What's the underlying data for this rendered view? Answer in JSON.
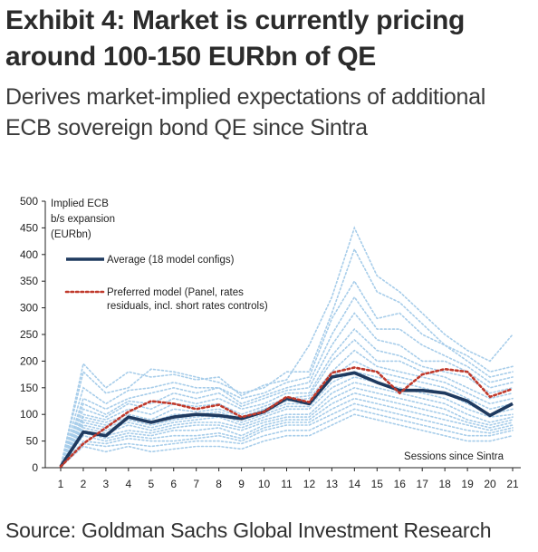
{
  "header": {
    "title_line1": "Exhibit 4: Market is currently pricing",
    "title_line2": "around 100-150 EURbn of QE",
    "subtitle_line1": "Derives market-implied expectations of additional",
    "subtitle_line2": "ECB sovereign bond QE since Sintra"
  },
  "footer": {
    "source": "Source: Goldman Sachs Global Investment Research"
  },
  "chart_data": {
    "type": "line",
    "ylabel_lines": [
      "Implied ECB",
      "b/s expansion",
      "(EURbn)"
    ],
    "xlabel": "Sessions since Sintra",
    "x": [
      1,
      2,
      3,
      4,
      5,
      6,
      7,
      8,
      9,
      10,
      11,
      12,
      13,
      14,
      15,
      16,
      17,
      18,
      19,
      20,
      21
    ],
    "ylim": [
      0,
      500
    ],
    "yticks": [
      0,
      50,
      100,
      150,
      200,
      250,
      300,
      350,
      400,
      450,
      500
    ],
    "grid": false,
    "legend_position": "top-left",
    "colors": {
      "average": "#1f3a5f",
      "preferred": "#c0392b",
      "configs": "#a7cdea"
    },
    "series": [
      {
        "name": "Average (18 model configs)",
        "style": "solid",
        "values": [
          2,
          67,
          60,
          95,
          85,
          95,
          100,
          98,
          92,
          105,
          130,
          120,
          170,
          178,
          160,
          145,
          145,
          140,
          125,
          98,
          120
        ]
      },
      {
        "name": "Preferred model (Panel, rates residuals, incl. short rates controls)",
        "style": "dotted",
        "values": [
          2,
          45,
          75,
          105,
          125,
          120,
          110,
          118,
          95,
          105,
          133,
          123,
          178,
          188,
          180,
          140,
          175,
          185,
          180,
          133,
          148
        ]
      }
    ],
    "model_configs": [
      [
        2,
        195,
        150,
        180,
        170,
        175,
        165,
        170,
        135,
        155,
        165,
        230,
        320,
        450,
        360,
        330,
        290,
        250,
        220,
        200,
        250
      ],
      [
        2,
        180,
        140,
        150,
        185,
        180,
        170,
        160,
        140,
        150,
        180,
        180,
        290,
        410,
        330,
        310,
        270,
        230,
        210,
        180,
        190
      ],
      [
        2,
        150,
        120,
        145,
        150,
        160,
        150,
        150,
        130,
        140,
        160,
        170,
        280,
        350,
        280,
        290,
        250,
        230,
        200,
        170,
        180
      ],
      [
        2,
        130,
        110,
        130,
        140,
        150,
        140,
        150,
        120,
        135,
        150,
        160,
        250,
        320,
        260,
        260,
        230,
        210,
        190,
        160,
        170
      ],
      [
        2,
        120,
        100,
        125,
        120,
        140,
        130,
        140,
        115,
        130,
        145,
        150,
        230,
        290,
        240,
        230,
        200,
        200,
        180,
        150,
        160
      ],
      [
        2,
        110,
        95,
        120,
        110,
        130,
        120,
        130,
        110,
        120,
        140,
        140,
        210,
        260,
        220,
        210,
        190,
        180,
        170,
        140,
        150
      ],
      [
        2,
        100,
        90,
        110,
        100,
        120,
        115,
        120,
        100,
        115,
        130,
        135,
        200,
        240,
        200,
        200,
        180,
        170,
        150,
        130,
        140
      ],
      [
        2,
        95,
        85,
        100,
        90,
        110,
        105,
        110,
        95,
        110,
        125,
        130,
        180,
        220,
        190,
        180,
        170,
        160,
        140,
        120,
        130
      ],
      [
        2,
        90,
        80,
        95,
        85,
        100,
        100,
        105,
        90,
        105,
        120,
        120,
        170,
        200,
        180,
        170,
        160,
        150,
        130,
        110,
        120
      ],
      [
        2,
        85,
        75,
        90,
        80,
        90,
        95,
        100,
        85,
        100,
        115,
        115,
        160,
        180,
        170,
        160,
        150,
        140,
        120,
        100,
        110
      ],
      [
        2,
        80,
        70,
        85,
        75,
        85,
        90,
        95,
        80,
        95,
        110,
        110,
        150,
        170,
        160,
        150,
        140,
        130,
        110,
        95,
        100
      ],
      [
        2,
        75,
        65,
        80,
        70,
        80,
        85,
        85,
        75,
        90,
        100,
        100,
        140,
        160,
        150,
        140,
        130,
        120,
        100,
        85,
        95
      ],
      [
        2,
        70,
        60,
        70,
        65,
        75,
        80,
        80,
        70,
        85,
        95,
        95,
        130,
        150,
        140,
        130,
        120,
        110,
        90,
        80,
        90
      ],
      [
        2,
        65,
        55,
        65,
        60,
        70,
        70,
        75,
        60,
        80,
        90,
        90,
        120,
        140,
        130,
        120,
        110,
        100,
        85,
        75,
        85
      ],
      [
        2,
        60,
        50,
        60,
        55,
        60,
        60,
        65,
        55,
        75,
        85,
        85,
        110,
        130,
        120,
        110,
        100,
        90,
        80,
        70,
        80
      ],
      [
        2,
        50,
        45,
        55,
        50,
        50,
        55,
        60,
        50,
        70,
        80,
        80,
        100,
        120,
        110,
        100,
        90,
        80,
        70,
        65,
        75
      ],
      [
        2,
        45,
        40,
        45,
        40,
        45,
        50,
        50,
        45,
        60,
        70,
        70,
        90,
        110,
        100,
        90,
        80,
        70,
        60,
        60,
        70
      ],
      [
        2,
        40,
        30,
        40,
        30,
        35,
        40,
        40,
        35,
        50,
        60,
        60,
        80,
        100,
        90,
        80,
        70,
        60,
        50,
        50,
        60
      ]
    ]
  }
}
